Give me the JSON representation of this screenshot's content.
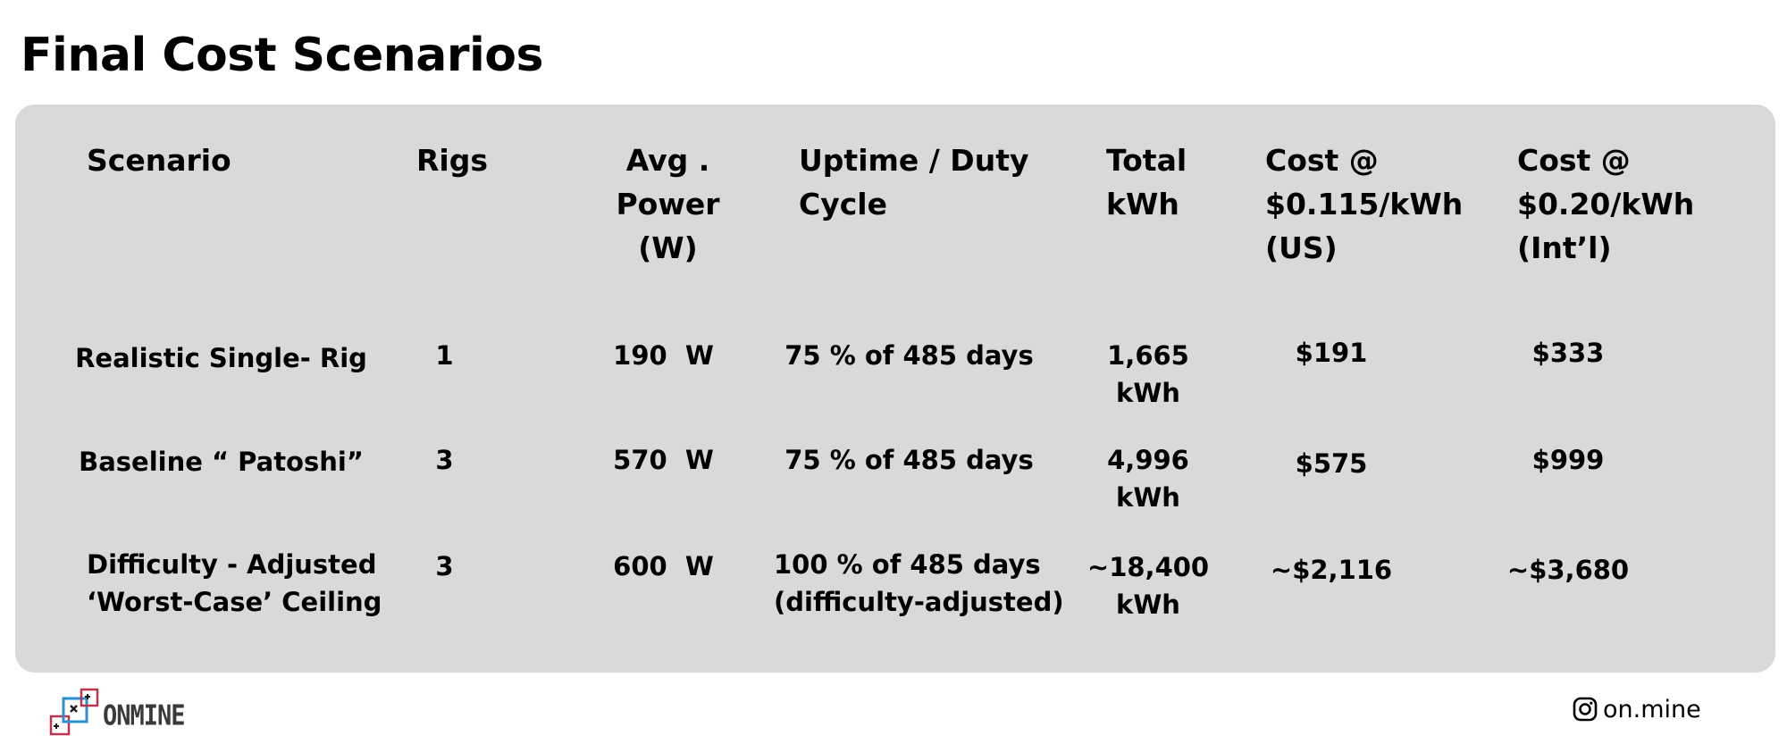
{
  "title": "Final Cost Scenarios",
  "table": {
    "headers": {
      "scenario": [
        "Scenario"
      ],
      "rigs": [
        "Rigs"
      ],
      "avg_power": [
        "Avg .",
        "Power",
        "(W)"
      ],
      "uptime": [
        "Uptime / Duty",
        "Cycle"
      ],
      "total_kwh": [
        "Total",
        "kWh"
      ],
      "cost_us": [
        "Cost @",
        "$0.115/kWh",
        "(US)"
      ],
      "cost_intl": [
        "Cost @",
        "$0.20/kWh",
        "(Int’l)"
      ]
    },
    "rows": [
      {
        "scenario": [
          "Realistic Single- Rig"
        ],
        "rigs": "1",
        "avg_power": "190  W",
        "uptime": [
          "75 % of 485 days"
        ],
        "total_kwh": [
          "1,665",
          "kWh"
        ],
        "cost_us": "$191",
        "cost_intl": "$333"
      },
      {
        "scenario": [
          "Baseline “ Patoshi”"
        ],
        "rigs": "3",
        "avg_power": "570  W",
        "uptime": [
          "75 % of 485 days"
        ],
        "total_kwh": [
          "4,996",
          "kWh"
        ],
        "cost_us": "$575",
        "cost_intl": "$999"
      },
      {
        "scenario": [
          "Difficulty - Adjusted",
          "‘Worst-Case’ Ceiling"
        ],
        "rigs": "3",
        "avg_power": "600  W",
        "uptime": [
          "100 % of 485 days",
          "(difficulty-adjusted)"
        ],
        "total_kwh": [
          "~18,400",
          "kWh"
        ],
        "cost_us": "~$2,116",
        "cost_intl": "~$3,680"
      }
    ]
  },
  "footer": {
    "logo_text": "ONMINE",
    "logo_icon": "onmine-squares-logo-icon",
    "social_icon": "instagram-icon",
    "social_handle": "on.mine"
  },
  "colors": {
    "panel_background": "#d9d9d9",
    "text": "#000000",
    "logo_blue": "#2b8fd0",
    "logo_red": "#b9364f",
    "logo_text": "#3a3a3a"
  }
}
